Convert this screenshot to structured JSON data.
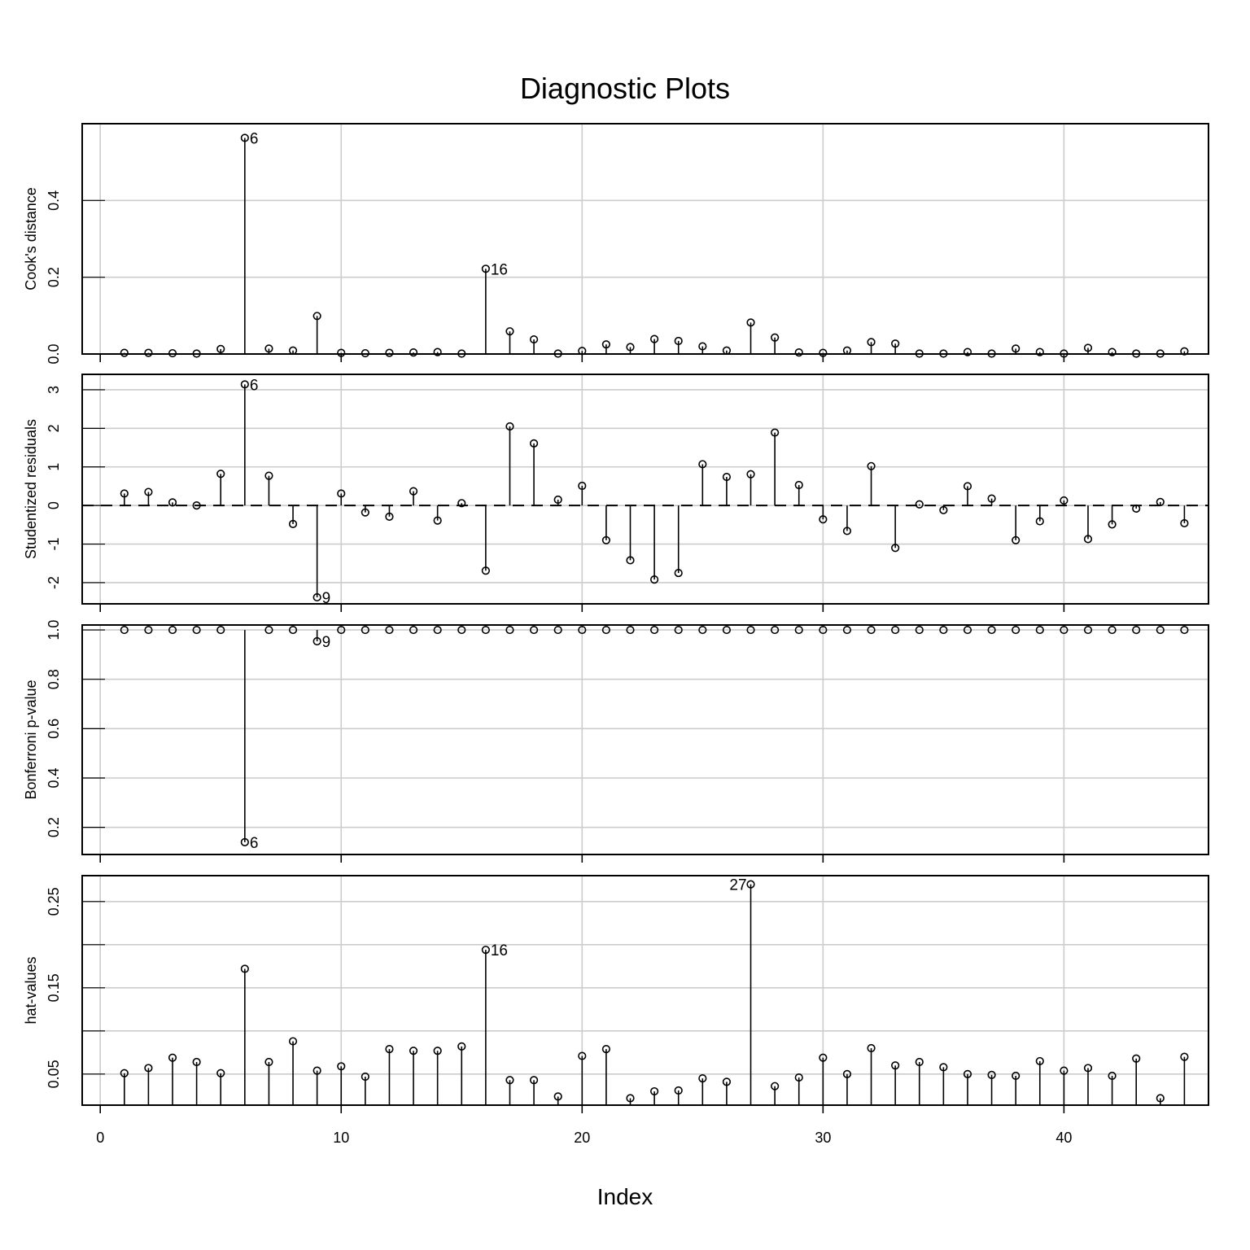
{
  "title": "Diagnostic Plots",
  "xlabel": "Index",
  "chart_data": [
    {
      "type": "scatter",
      "style": "stems-from-zero",
      "title": "",
      "xlabel": "Index",
      "ylabel": "Cook's distance",
      "ylim": [
        0,
        0.6
      ],
      "yticks": [
        0.0,
        0.2,
        0.4
      ],
      "ytick_labels": [
        "0.0",
        "0.2",
        "0.4"
      ],
      "grid": true,
      "baseline": 0,
      "baseline_dashed": false,
      "x": [
        1,
        2,
        3,
        4,
        5,
        6,
        7,
        8,
        9,
        10,
        11,
        12,
        13,
        14,
        15,
        16,
        17,
        18,
        19,
        20,
        21,
        22,
        23,
        24,
        25,
        26,
        27,
        28,
        29,
        30,
        31,
        32,
        33,
        34,
        35,
        36,
        37,
        38,
        39,
        40,
        41,
        42,
        43,
        44,
        45
      ],
      "values": [
        0.003,
        0.003,
        0.002,
        0.001,
        0.013,
        0.563,
        0.014,
        0.009,
        0.099,
        0.003,
        0.002,
        0.003,
        0.004,
        0.005,
        0.001,
        0.222,
        0.059,
        0.038,
        0.001,
        0.008,
        0.025,
        0.018,
        0.039,
        0.034,
        0.02,
        0.009,
        0.082,
        0.043,
        0.004,
        0.003,
        0.009,
        0.031,
        0.027,
        0.001,
        0.001,
        0.005,
        0.001,
        0.014,
        0.005,
        0.001,
        0.016,
        0.005,
        0.001,
        0.001,
        0.007
      ],
      "annotations": [
        {
          "x": 6,
          "text": "6",
          "side": "right"
        },
        {
          "x": 16,
          "text": "16",
          "side": "right"
        }
      ]
    },
    {
      "type": "scatter",
      "style": "stems-from-zero",
      "title": "",
      "xlabel": "Index",
      "ylabel": "Studentized residuals",
      "ylim": [
        -2.55,
        3.4
      ],
      "yticks": [
        -2,
        -1,
        0,
        1,
        2,
        3
      ],
      "ytick_labels": [
        "-2",
        "-1",
        "0",
        "1",
        "2",
        "3"
      ],
      "grid": true,
      "baseline": 0,
      "baseline_dashed": true,
      "x": [
        1,
        2,
        3,
        4,
        5,
        6,
        7,
        8,
        9,
        10,
        11,
        12,
        13,
        14,
        15,
        16,
        17,
        18,
        19,
        20,
        21,
        22,
        23,
        24,
        25,
        26,
        27,
        28,
        29,
        30,
        31,
        32,
        33,
        34,
        35,
        36,
        37,
        38,
        39,
        40,
        41,
        42,
        43,
        44,
        45
      ],
      "values": [
        0.31,
        0.35,
        0.08,
        0.0,
        0.82,
        3.14,
        0.77,
        -0.48,
        -2.38,
        0.31,
        -0.18,
        -0.29,
        0.37,
        -0.39,
        0.06,
        -1.69,
        2.05,
        1.61,
        0.15,
        0.51,
        -0.9,
        -1.42,
        -1.92,
        -1.75,
        1.07,
        0.74,
        0.81,
        1.89,
        0.53,
        -0.36,
        -0.66,
        1.02,
        -1.1,
        0.03,
        -0.12,
        0.5,
        0.18,
        -0.9,
        -0.41,
        0.13,
        -0.87,
        -0.49,
        -0.08,
        0.09,
        -0.46
      ],
      "annotations": [
        {
          "x": 6,
          "text": "6",
          "side": "right"
        },
        {
          "x": 9,
          "text": "9",
          "side": "right"
        }
      ]
    },
    {
      "type": "scatter",
      "style": "stems-from-top",
      "title": "",
      "xlabel": "Index",
      "ylabel": "Bonferroni p-value",
      "ylim": [
        0.09,
        1.02
      ],
      "yticks": [
        0.2,
        0.4,
        0.6,
        0.8,
        1.0
      ],
      "ytick_labels": [
        "0.2",
        "0.4",
        "0.6",
        "0.8",
        "1.0"
      ],
      "grid": true,
      "baseline": 1.0,
      "baseline_dashed": false,
      "x": [
        1,
        2,
        3,
        4,
        5,
        6,
        7,
        8,
        9,
        10,
        11,
        12,
        13,
        14,
        15,
        16,
        17,
        18,
        19,
        20,
        21,
        22,
        23,
        24,
        25,
        26,
        27,
        28,
        29,
        30,
        31,
        32,
        33,
        34,
        35,
        36,
        37,
        38,
        39,
        40,
        41,
        42,
        43,
        44,
        45
      ],
      "values": [
        1,
        1,
        1,
        1,
        1,
        0.14,
        1,
        1,
        0.954,
        1,
        1,
        1,
        1,
        1,
        1,
        1,
        1,
        1,
        1,
        1,
        1,
        1,
        1,
        1,
        1,
        1,
        1,
        1,
        1,
        1,
        1,
        1,
        1,
        1,
        1,
        1,
        1,
        1,
        1,
        1,
        1,
        1,
        1,
        1,
        1
      ],
      "annotations": [
        {
          "x": 6,
          "text": "6",
          "side": "right"
        },
        {
          "x": 9,
          "text": "9",
          "side": "right"
        }
      ]
    },
    {
      "type": "scatter",
      "style": "stems-from-bottom",
      "title": "",
      "xlabel": "Index",
      "ylabel": "hat-values",
      "ylim": [
        0.014,
        0.28
      ],
      "yticks": [
        0.05,
        0.1,
        0.15,
        0.2,
        0.25
      ],
      "ytick_labels": [
        "0.05",
        "",
        "0.15",
        "",
        "0.25"
      ],
      "grid": true,
      "baseline": 0.014,
      "baseline_dashed": false,
      "x": [
        1,
        2,
        3,
        4,
        5,
        6,
        7,
        8,
        9,
        10,
        11,
        12,
        13,
        14,
        15,
        16,
        17,
        18,
        19,
        20,
        21,
        22,
        23,
        24,
        25,
        26,
        27,
        28,
        29,
        30,
        31,
        32,
        33,
        34,
        35,
        36,
        37,
        38,
        39,
        40,
        41,
        42,
        43,
        44,
        45
      ],
      "values": [
        0.051,
        0.057,
        0.069,
        0.064,
        0.051,
        0.172,
        0.064,
        0.088,
        0.054,
        0.059,
        0.047,
        0.079,
        0.077,
        0.077,
        0.082,
        0.194,
        0.043,
        0.043,
        0.024,
        0.071,
        0.079,
        0.022,
        0.03,
        0.031,
        0.045,
        0.041,
        0.27,
        0.036,
        0.046,
        0.069,
        0.05,
        0.08,
        0.06,
        0.064,
        0.058,
        0.05,
        0.049,
        0.048,
        0.065,
        0.054,
        0.057,
        0.048,
        0.068,
        0.022,
        0.07
      ],
      "annotations": [
        {
          "x": 16,
          "text": "16",
          "side": "right"
        },
        {
          "x": 27,
          "text": "27",
          "side": "left"
        }
      ]
    }
  ],
  "x_axis": {
    "xlim": [
      -0.75,
      46.0
    ],
    "ticks": [
      0,
      10,
      20,
      30,
      40
    ],
    "tick_labels": [
      "0",
      "10",
      "20",
      "30",
      "40"
    ]
  }
}
